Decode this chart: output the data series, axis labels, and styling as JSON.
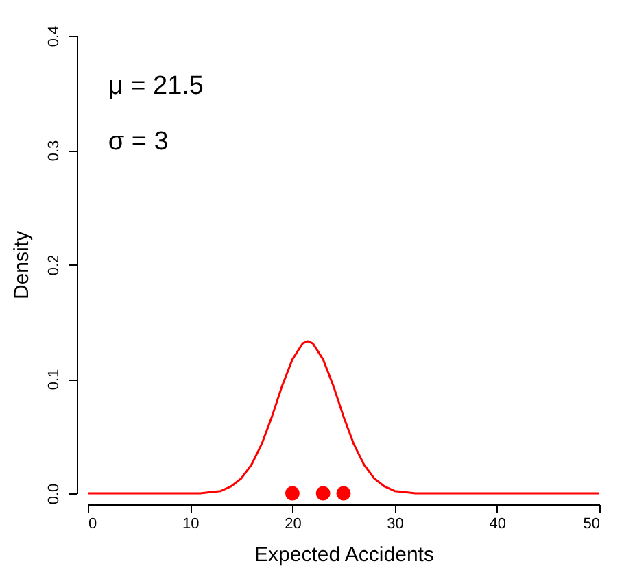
{
  "chart_data": {
    "type": "line",
    "xlabel": "Expected Accidents",
    "ylabel": "Density",
    "xlim": [
      0,
      50
    ],
    "ylim": [
      0,
      0.4
    ],
    "xticks": [
      0,
      10,
      20,
      30,
      40,
      50
    ],
    "yticks": [
      {
        "value": 0,
        "label": "0.0"
      },
      {
        "value": 0.1,
        "label": "0.1"
      },
      {
        "value": 0.2,
        "label": "0.2"
      },
      {
        "value": 0.3,
        "label": "0.3"
      },
      {
        "value": 0.4,
        "label": "0.4"
      }
    ],
    "grid": false,
    "annotations": [
      "μ = 21.5",
      "σ = 3"
    ],
    "series": [
      {
        "color": "#ff0000",
        "marker": "none",
        "x": [
          0,
          4,
          8,
          11,
          12,
          13,
          14,
          15,
          16,
          17,
          18,
          19,
          20,
          21,
          21.5,
          22,
          23,
          24,
          25,
          26,
          27,
          28,
          29,
          30,
          31,
          32,
          36,
          40,
          45,
          50
        ],
        "values": [
          0,
          0,
          0,
          0,
          0.001,
          0.002,
          0.006,
          0.013,
          0.025,
          0.043,
          0.067,
          0.094,
          0.117,
          0.131,
          0.133,
          0.131,
          0.117,
          0.094,
          0.067,
          0.043,
          0.025,
          0.013,
          0.006,
          0.002,
          0.001,
          0,
          0,
          0,
          0,
          0
        ]
      },
      {
        "type": "scatter",
        "color": "#ff0000",
        "marker": "circle",
        "x": [
          20,
          23,
          25
        ],
        "values": [
          0,
          0,
          0
        ]
      }
    ]
  }
}
